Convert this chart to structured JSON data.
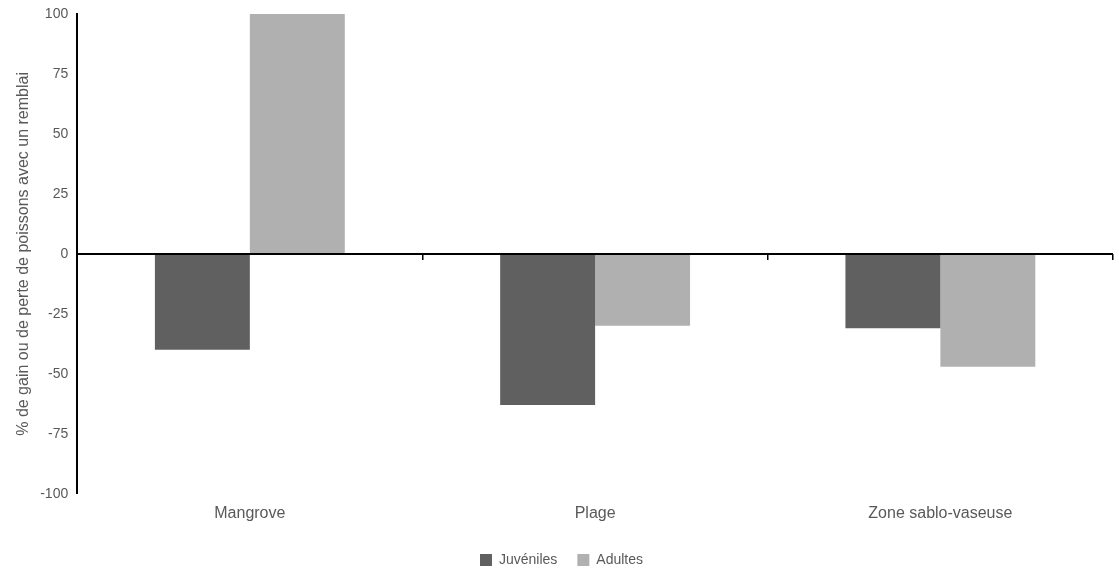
{
  "chart_data": {
    "type": "bar",
    "ylabel": "% de gain ou de perte de poissons avec un remblai",
    "categories": [
      "Mangrove",
      "Plage",
      "Zone sablo-vaseuse"
    ],
    "series": [
      {
        "name": "Juvéniles",
        "color": "#606060",
        "values": [
          -40,
          -63,
          -31
        ]
      },
      {
        "name": "Adultes",
        "color": "#b0b0b0",
        "values": [
          100,
          -30,
          -47
        ]
      }
    ],
    "ylim": [
      -100,
      100
    ],
    "yticks": [
      -100,
      -75,
      -50,
      -25,
      0,
      25,
      50,
      75,
      100
    ],
    "ref_lines": [
      {
        "axis": "y",
        "value": 0,
        "color": "#000000"
      }
    ],
    "grid": false,
    "legend": "bottom"
  }
}
